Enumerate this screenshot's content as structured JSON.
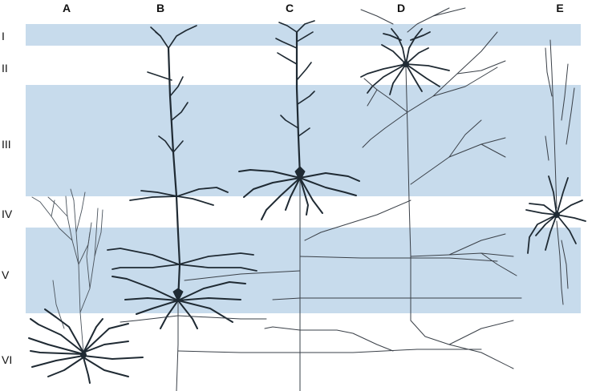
{
  "columns": [
    {
      "id": "A",
      "label": "A"
    },
    {
      "id": "B",
      "label": "B"
    },
    {
      "id": "C",
      "label": "C"
    },
    {
      "id": "D",
      "label": "D"
    },
    {
      "id": "E",
      "label": "E"
    }
  ],
  "layers": [
    {
      "id": "I",
      "label": "I",
      "shaded": true
    },
    {
      "id": "II",
      "label": "II",
      "shaded": false
    },
    {
      "id": "III",
      "label": "III",
      "shaded": true
    },
    {
      "id": "IV",
      "label": "IV",
      "shaded": false
    },
    {
      "id": "V",
      "label": "V",
      "shaded": true
    },
    {
      "id": "VI",
      "label": "VI",
      "shaded": false
    }
  ],
  "colors": {
    "band": "#c7dbec",
    "neuron_dark": "#1f2a33",
    "axon": "#3a4048"
  }
}
